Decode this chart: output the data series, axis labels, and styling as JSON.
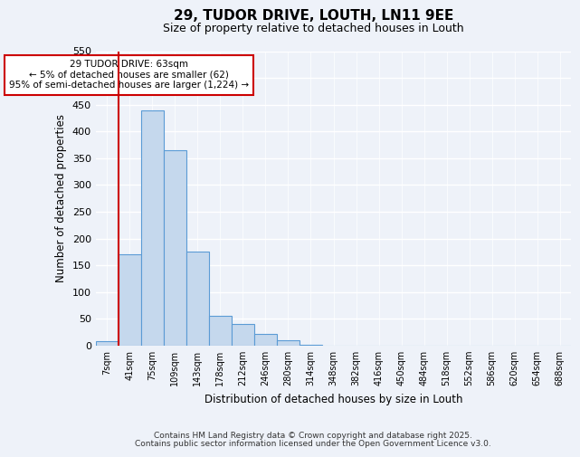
{
  "title": "29, TUDOR DRIVE, LOUTH, LN11 9EE",
  "subtitle": "Size of property relative to detached houses in Louth",
  "xlabel": "Distribution of detached houses by size in Louth",
  "ylabel": "Number of detached properties",
  "bar_values": [
    8,
    170,
    440,
    365,
    175,
    55,
    40,
    22,
    10,
    2,
    0,
    0,
    0,
    0,
    0,
    0,
    0,
    0,
    0,
    0,
    0
  ],
  "bar_labels": [
    "7sqm",
    "41sqm",
    "75sqm",
    "109sqm",
    "143sqm",
    "178sqm",
    "212sqm",
    "246sqm",
    "280sqm",
    "314sqm",
    "348sqm",
    "382sqm",
    "416sqm",
    "450sqm",
    "484sqm",
    "518sqm",
    "552sqm",
    "586sqm",
    "620sqm",
    "654sqm",
    "688sqm"
  ],
  "bar_color": "#c5d8ed",
  "bar_edge_color": "#5b9bd5",
  "ylim": [
    0,
    550
  ],
  "yticks": [
    0,
    50,
    100,
    150,
    200,
    250,
    300,
    350,
    400,
    450,
    500,
    550
  ],
  "vline_x": 1,
  "vline_color": "#cc0000",
  "annotation_title": "29 TUDOR DRIVE: 63sqm",
  "annotation_line1": "← 5% of detached houses are smaller (62)",
  "annotation_line2": "95% of semi-detached houses are larger (1,224) →",
  "annotation_box_color": "#cc0000",
  "footer_line1": "Contains HM Land Registry data © Crown copyright and database right 2025.",
  "footer_line2": "Contains public sector information licensed under the Open Government Licence v3.0.",
  "background_color": "#eef2f9",
  "grid_color": "#d8dde8"
}
